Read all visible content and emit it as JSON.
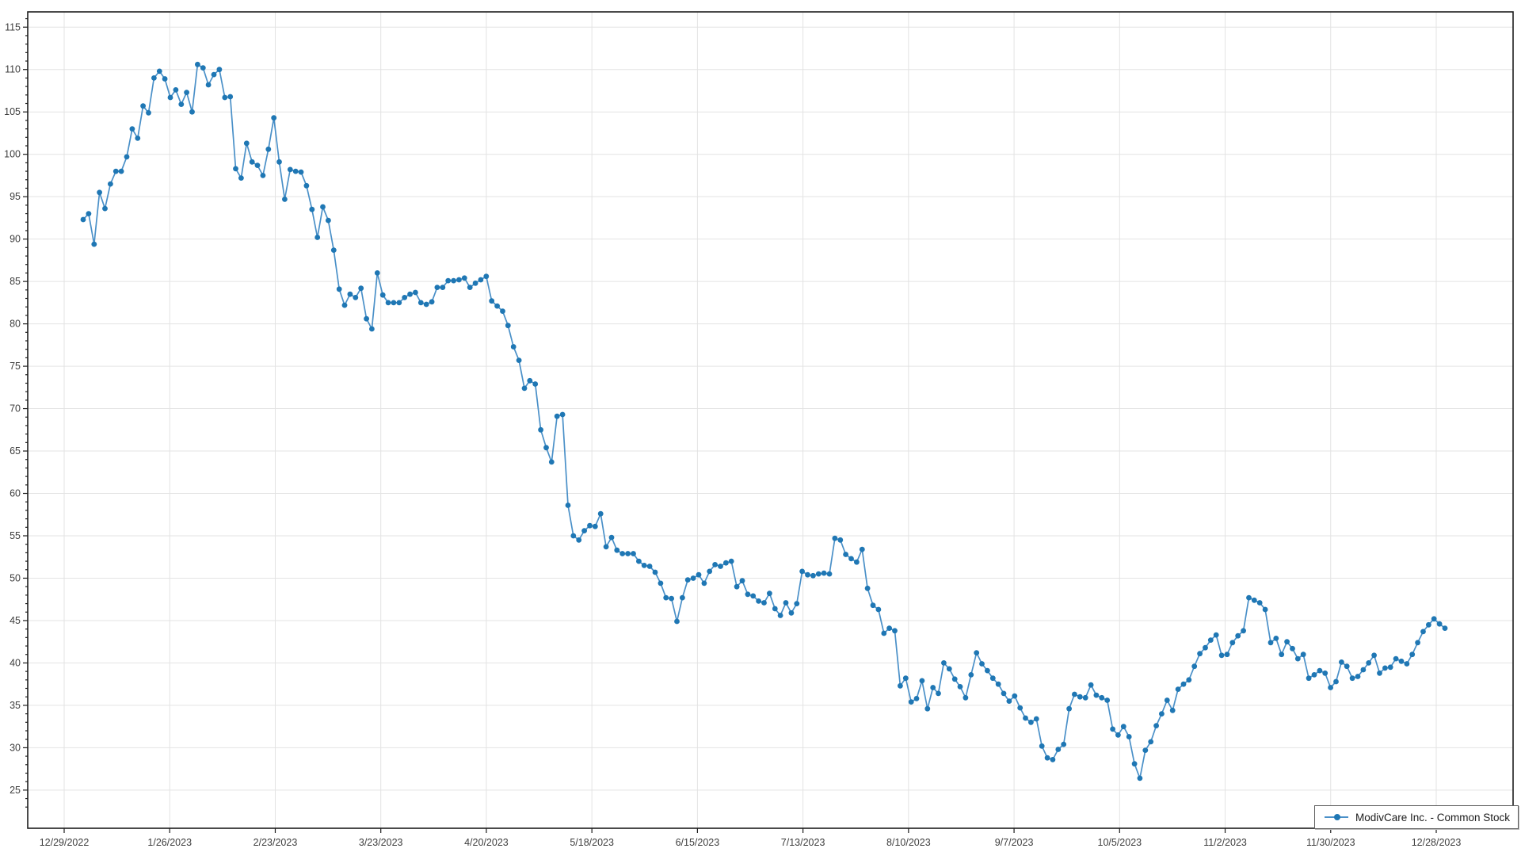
{
  "window": {
    "background": "#ffffff"
  },
  "legend": {
    "label": "ModivCare Inc. - Common Stock",
    "position": "bottom-right"
  },
  "colors": {
    "line": "#4a90c8",
    "marker": "#1f77b4",
    "grid": "#e3e3e3",
    "border": "#1d1d1d",
    "tick_text": "#3d3d3d"
  },
  "chart_data": {
    "type": "line",
    "title": "",
    "xlabel": "",
    "ylabel": "",
    "grid": true,
    "legend_position": "bottom-right",
    "ylim": [
      20.5,
      116.8
    ],
    "y_tick_step": 5,
    "y_minor_tick_step": 1,
    "y_ticks": [
      115,
      110,
      105,
      100,
      95,
      90,
      85,
      80,
      75,
      70,
      65,
      60,
      55,
      50,
      45,
      40,
      35,
      30,
      25
    ],
    "x_ticks": [
      "12/29/2022",
      "1/26/2023",
      "2/23/2023",
      "3/23/2023",
      "4/20/2023",
      "5/18/2023",
      "6/15/2023",
      "7/13/2023",
      "8/10/2023",
      "9/7/2023",
      "10/5/2023",
      "11/2/2023",
      "11/30/2023",
      "12/28/2023"
    ],
    "series": [
      {
        "name": "ModivCare Inc. - Common Stock",
        "marker": "circle",
        "values": [
          92.3,
          93.0,
          89.4,
          95.5,
          93.6,
          96.5,
          98.0,
          98.0,
          99.7,
          103.0,
          101.9,
          105.7,
          104.9,
          109.0,
          109.8,
          108.9,
          106.7,
          107.6,
          105.9,
          107.3,
          105.0,
          110.6,
          110.2,
          108.2,
          109.4,
          110.0,
          106.7,
          106.8,
          98.3,
          97.2,
          101.3,
          99.1,
          98.7,
          97.5,
          100.6,
          104.3,
          99.1,
          94.7,
          98.2,
          98.0,
          97.9,
          96.3,
          93.5,
          90.2,
          93.8,
          92.2,
          88.7,
          84.1,
          82.2,
          83.5,
          83.1,
          84.2,
          80.6,
          79.4,
          86.0,
          83.4,
          82.5,
          82.5,
          82.5,
          83.1,
          83.5,
          83.7,
          82.5,
          82.3,
          82.6,
          84.3,
          84.3,
          85.1,
          85.1,
          85.2,
          85.4,
          84.3,
          84.8,
          85.2,
          85.6,
          82.7,
          82.1,
          81.5,
          79.8,
          77.3,
          75.7,
          72.4,
          73.3,
          72.9,
          67.5,
          65.4,
          63.7,
          69.1,
          69.3,
          58.6,
          55.0,
          54.5,
          55.6,
          56.2,
          56.1,
          57.6,
          53.7,
          54.8,
          53.3,
          52.9,
          52.9,
          52.9,
          52.0,
          51.5,
          51.4,
          50.7,
          49.4,
          47.7,
          47.6,
          44.9,
          47.7,
          49.8,
          50.0,
          50.4,
          49.4,
          50.8,
          51.6,
          51.4,
          51.8,
          52.0,
          49.0,
          49.7,
          48.1,
          47.9,
          47.3,
          47.1,
          48.2,
          46.4,
          45.6,
          47.1,
          45.9,
          47.0,
          50.8,
          50.4,
          50.3,
          50.5,
          50.6,
          50.5,
          54.7,
          54.5,
          52.8,
          52.3,
          51.9,
          53.4,
          48.8,
          46.8,
          46.3,
          43.5,
          44.1,
          43.8,
          37.3,
          38.2,
          35.4,
          35.8,
          37.9,
          34.6,
          37.1,
          36.4,
          40.0,
          39.3,
          38.1,
          37.2,
          35.9,
          38.6,
          41.2,
          39.9,
          39.1,
          38.2,
          37.5,
          36.4,
          35.5,
          36.1,
          34.7,
          33.5,
          33.0,
          33.4,
          30.2,
          28.8,
          28.6,
          29.8,
          30.4,
          34.6,
          36.3,
          36.0,
          35.9,
          37.4,
          36.2,
          35.9,
          35.6,
          32.2,
          31.5,
          32.5,
          31.3,
          28.1,
          26.4,
          29.7,
          30.7,
          32.6,
          34.0,
          35.6,
          34.4,
          36.9,
          37.5,
          38.0,
          39.6,
          41.1,
          41.8,
          42.7,
          43.3,
          40.9,
          41.0,
          42.4,
          43.2,
          43.8,
          47.7,
          47.4,
          47.1,
          46.3,
          42.4,
          42.9,
          41.0,
          42.5,
          41.7,
          40.5,
          41.0,
          38.2,
          38.6,
          39.1,
          38.8,
          37.1,
          37.8,
          40.1,
          39.6,
          38.2,
          38.4,
          39.2,
          40.0,
          40.9,
          38.8,
          39.4,
          39.5,
          40.5,
          40.2,
          39.9,
          41.0,
          42.4,
          43.7,
          44.5,
          45.2,
          44.6,
          44.1
        ]
      }
    ]
  }
}
